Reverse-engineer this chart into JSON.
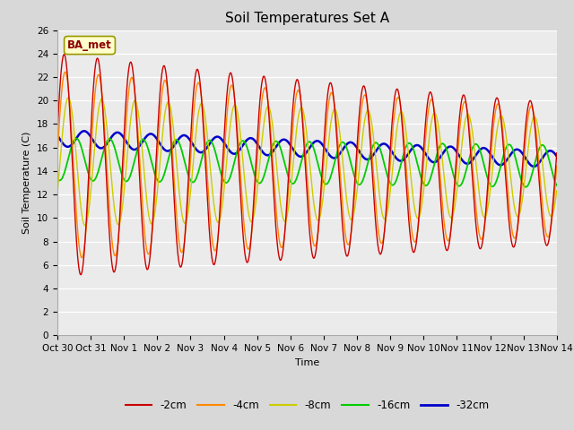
{
  "title": "Soil Temperatures Set A",
  "xlabel": "Time",
  "ylabel": "Soil Temperature (C)",
  "ylim": [
    0,
    26
  ],
  "yticks": [
    0,
    2,
    4,
    6,
    8,
    10,
    12,
    14,
    16,
    18,
    20,
    22,
    24,
    26
  ],
  "x_tick_labels": [
    "Oct 30",
    "Oct 31",
    "Nov 1",
    "Nov 2",
    "Nov 3",
    "Nov 4",
    "Nov 5",
    "Nov 6",
    "Nov 7",
    "Nov 8",
    "Nov 9",
    "Nov 10",
    "Nov 11",
    "Nov 12",
    "Nov 13",
    "Nov 14"
  ],
  "series": {
    "-2cm": {
      "color": "#cc0000",
      "lw": 1.0
    },
    "-4cm": {
      "color": "#ff8800",
      "lw": 1.0
    },
    "-8cm": {
      "color": "#cccc00",
      "lw": 1.0
    },
    "-16cm": {
      "color": "#00cc00",
      "lw": 1.3
    },
    "-32cm": {
      "color": "#0000cc",
      "lw": 1.8
    }
  },
  "annotation_text": "BA_met",
  "bg_color": "#d8d8d8",
  "plot_bg_color": "#ebebeb",
  "title_fontsize": 11,
  "label_fontsize": 8,
  "tick_fontsize": 7.5
}
